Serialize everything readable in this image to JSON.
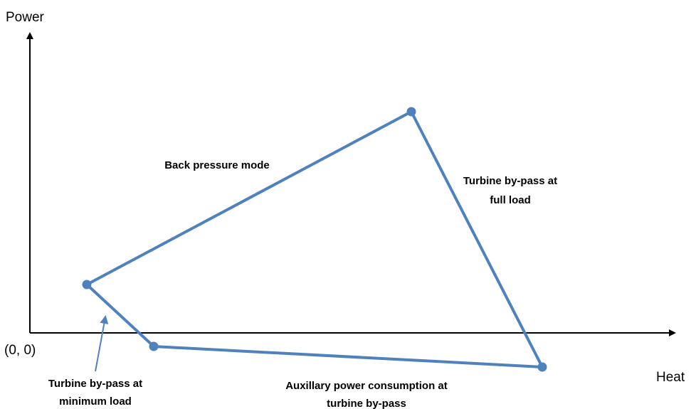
{
  "axes": {
    "y_label": "Power",
    "x_label": "Heat",
    "origin": "(0, 0)"
  },
  "annotations": [
    {
      "lines": [
        "Back pressure mode"
      ]
    },
    {
      "lines": [
        "Turbine by-pass at",
        "full load"
      ]
    },
    {
      "lines": [
        "Turbine by-pass at",
        "minimum load"
      ]
    },
    {
      "lines": [
        "Auxillary power consumption  at",
        "turbine by-pass"
      ]
    }
  ]
}
